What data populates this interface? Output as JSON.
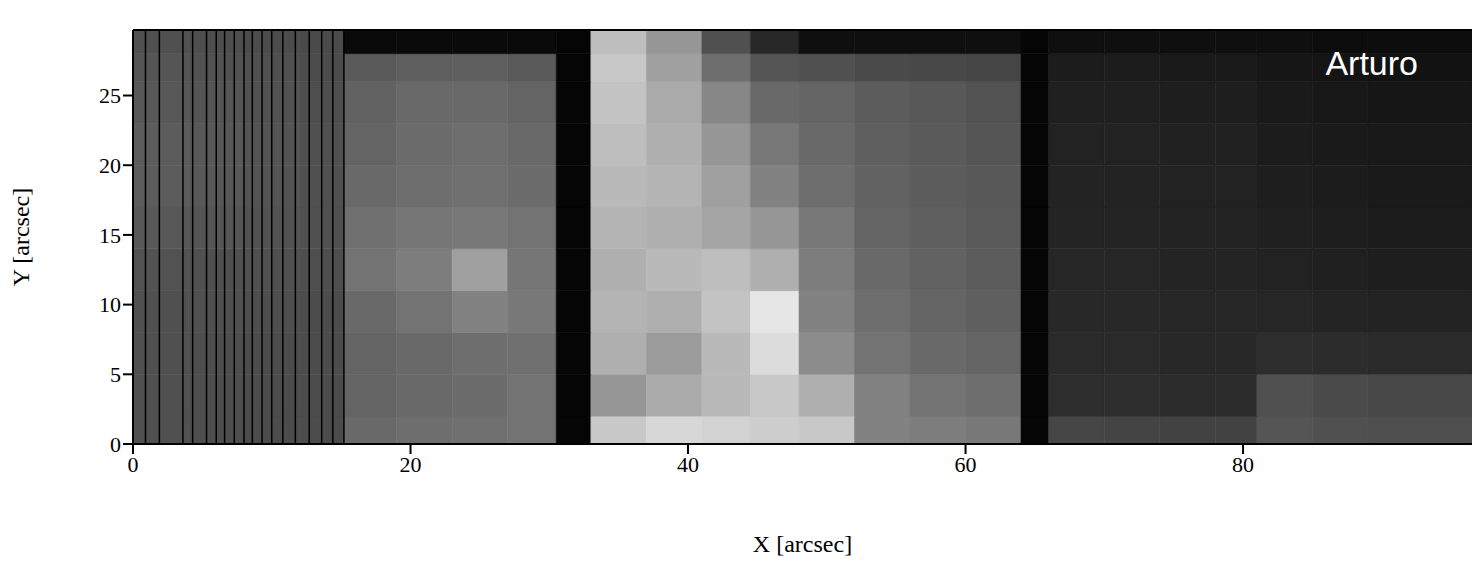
{
  "chart_data": {
    "type": "heatmap",
    "annotation": "Arturo",
    "x_label": "X [arcsec]",
    "y_label": "Y [arcsec]",
    "xlim": [
      0,
      96.5
    ],
    "ylim": [
      0,
      29.7
    ],
    "xticks": [
      0,
      20,
      40,
      60,
      80
    ],
    "yticks": [
      0,
      5,
      10,
      15,
      20,
      25
    ],
    "grid": false,
    "vertical_lines": [
      0.9,
      1.9,
      3.6,
      4.3,
      5.3,
      6.0,
      6.6,
      7.3,
      8.0,
      8.6,
      9.3,
      10.0,
      10.8,
      11.7,
      12.7,
      13.6,
      14.4,
      15.2
    ],
    "heatmap": {
      "x_edges": [
        0,
        4,
        8,
        12,
        15.2,
        19,
        23,
        27,
        30.5,
        33,
        37,
        41,
        44.5,
        48,
        52,
        56,
        60,
        64,
        66,
        70,
        74,
        78,
        81,
        85,
        89,
        96.5
      ],
      "y_edges": [
        0,
        2,
        5,
        8,
        11,
        14,
        17,
        20,
        23,
        26,
        28,
        29.7
      ],
      "cells": [
        [
          80,
          78,
          76,
          76,
          105,
          110,
          112,
          115,
          5,
          200,
          215,
          210,
          205,
          200,
          130,
          125,
          120,
          5,
          70,
          68,
          66,
          66,
          85,
          80,
          78
        ],
        [
          80,
          78,
          76,
          76,
          100,
          105,
          108,
          115,
          5,
          150,
          170,
          185,
          200,
          175,
          130,
          115,
          110,
          5,
          45,
          45,
          44,
          44,
          80,
          75,
          72
        ],
        [
          80,
          78,
          76,
          76,
          100,
          105,
          110,
          112,
          5,
          175,
          155,
          185,
          220,
          140,
          115,
          105,
          100,
          5,
          42,
          42,
          40,
          40,
          45,
          44,
          42
        ],
        [
          80,
          80,
          78,
          76,
          105,
          115,
          130,
          120,
          5,
          180,
          175,
          195,
          230,
          130,
          110,
          100,
          95,
          5,
          40,
          40,
          38,
          38,
          38,
          36,
          35
        ],
        [
          82,
          80,
          80,
          78,
          115,
          125,
          160,
          118,
          5,
          175,
          185,
          190,
          175,
          125,
          105,
          98,
          92,
          5,
          38,
          38,
          36,
          36,
          34,
          32,
          30
        ],
        [
          88,
          85,
          82,
          80,
          112,
          118,
          120,
          115,
          5,
          180,
          175,
          165,
          150,
          120,
          100,
          95,
          90,
          5,
          36,
          36,
          35,
          35,
          32,
          30,
          28
        ],
        [
          92,
          88,
          84,
          80,
          105,
          110,
          112,
          108,
          5,
          185,
          180,
          160,
          130,
          110,
          98,
          92,
          88,
          5,
          35,
          35,
          34,
          34,
          30,
          28,
          26
        ],
        [
          92,
          88,
          84,
          80,
          100,
          108,
          110,
          105,
          5,
          190,
          175,
          150,
          120,
          105,
          95,
          90,
          85,
          5,
          34,
          34,
          33,
          33,
          28,
          26,
          25
        ],
        [
          88,
          85,
          82,
          78,
          98,
          105,
          105,
          100,
          5,
          195,
          170,
          135,
          105,
          100,
          92,
          88,
          82,
          5,
          32,
          32,
          30,
          30,
          26,
          24,
          22
        ],
        [
          85,
          82,
          80,
          76,
          90,
          95,
          95,
          90,
          5,
          200,
          160,
          110,
          85,
          80,
          75,
          72,
          70,
          5,
          28,
          28,
          26,
          26,
          22,
          20,
          18
        ],
        [
          80,
          78,
          76,
          74,
          10,
          10,
          10,
          10,
          5,
          190,
          150,
          80,
          40,
          15,
          15,
          15,
          15,
          5,
          15,
          15,
          15,
          15,
          15,
          12,
          12
        ]
      ]
    }
  }
}
